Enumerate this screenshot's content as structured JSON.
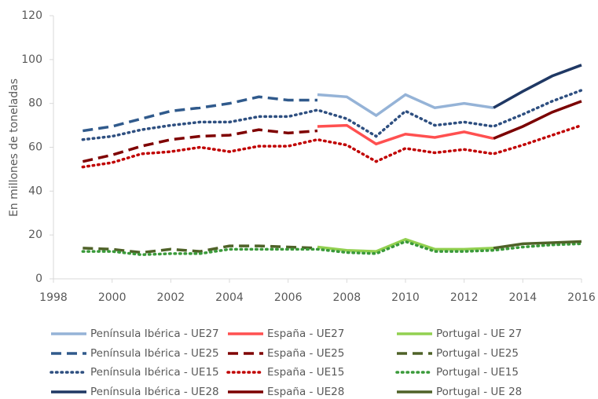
{
  "chart_data": {
    "type": "line",
    "y_label": "En millones de toneladas",
    "xlim": [
      1998,
      2016
    ],
    "xticks": [
      1998,
      2000,
      2002,
      2004,
      2006,
      2008,
      2010,
      2012,
      2014,
      2016
    ],
    "ylim": [
      0,
      120
    ],
    "yticks": [
      0,
      20,
      40,
      60,
      80,
      100,
      120
    ],
    "grid": false,
    "series": [
      {
        "name": "Península Ibérica - UE27",
        "color": "#95b3d7",
        "style": "solid",
        "x": [
          2007,
          2008,
          2009,
          2010,
          2011,
          2012,
          2013
        ],
        "values": [
          84,
          83,
          74.5,
          84,
          78,
          80,
          78
        ]
      },
      {
        "name": "España - UE27",
        "color": "#ff5050",
        "style": "solid",
        "x": [
          2007,
          2008,
          2009,
          2010,
          2011,
          2012,
          2013
        ],
        "values": [
          69.5,
          70,
          61.5,
          66,
          64.5,
          67,
          64
        ]
      },
      {
        "name": "Portugal - UE 27",
        "color": "#92d050",
        "style": "solid",
        "x": [
          2007,
          2008,
          2009,
          2010,
          2011,
          2012,
          2013
        ],
        "values": [
          14.5,
          13,
          12.5,
          18,
          13.5,
          13.5,
          14
        ]
      },
      {
        "name": "Península Ibérica - UE25",
        "color": "#305a8c",
        "style": "dashed",
        "x": [
          1999,
          2000,
          2001,
          2002,
          2003,
          2004,
          2005,
          2006,
          2007
        ],
        "values": [
          67.5,
          69.5,
          73,
          76.5,
          78,
          80,
          83,
          81.5,
          81.5
        ]
      },
      {
        "name": "España - UE25",
        "color": "#7f0000",
        "style": "dashed",
        "x": [
          1999,
          2000,
          2001,
          2002,
          2003,
          2004,
          2005,
          2006,
          2007
        ],
        "values": [
          53.5,
          56.5,
          60.5,
          63.5,
          65,
          65.5,
          68,
          66.5,
          67.5
        ]
      },
      {
        "name": "Portugal - UE25",
        "color": "#4f6228",
        "style": "dashed",
        "x": [
          1999,
          2000,
          2001,
          2002,
          2003,
          2004,
          2005,
          2006,
          2007
        ],
        "values": [
          14,
          13.5,
          12,
          13.5,
          12.5,
          15,
          15,
          14.5,
          14
        ]
      },
      {
        "name": "Península Ibérica - UE15",
        "color": "#2e4f80",
        "style": "dotted",
        "x": [
          1999,
          2000,
          2001,
          2002,
          2003,
          2004,
          2005,
          2006,
          2007,
          2008,
          2009,
          2010,
          2011,
          2012,
          2013,
          2014,
          2015,
          2016
        ],
        "values": [
          63.5,
          65,
          68,
          70,
          71.5,
          71.5,
          74,
          74,
          77,
          73,
          65,
          76.5,
          70,
          71.5,
          69.5,
          75,
          81,
          86
        ]
      },
      {
        "name": "España - UE15",
        "color": "#c00000",
        "style": "dotted",
        "x": [
          1999,
          2000,
          2001,
          2002,
          2003,
          2004,
          2005,
          2006,
          2007,
          2008,
          2009,
          2010,
          2011,
          2012,
          2013,
          2014,
          2015,
          2016
        ],
        "values": [
          51,
          53,
          57,
          58,
          60,
          58,
          60.5,
          60.5,
          63.5,
          61,
          53.5,
          59.5,
          57.5,
          59,
          57,
          61,
          65.5,
          70
        ]
      },
      {
        "name": "Portugal - UE15",
        "color": "#3a9a3a",
        "style": "dotted",
        "x": [
          1999,
          2000,
          2001,
          2002,
          2003,
          2004,
          2005,
          2006,
          2007,
          2008,
          2009,
          2010,
          2011,
          2012,
          2013,
          2014,
          2015,
          2016
        ],
        "values": [
          12.5,
          12.5,
          11,
          11.5,
          11.5,
          13.5,
          13.5,
          13.5,
          13.5,
          12,
          11.5,
          17,
          12.5,
          12.5,
          13,
          14.5,
          15.5,
          16
        ]
      },
      {
        "name": "Península Ibérica - UE28",
        "color": "#1f3864",
        "style": "solid",
        "x": [
          2013,
          2014,
          2015,
          2016
        ],
        "values": [
          78,
          85.5,
          92.5,
          97.5
        ]
      },
      {
        "name": "España - UE28",
        "color": "#7b0000",
        "style": "solid",
        "x": [
          2013,
          2014,
          2015,
          2016
        ],
        "values": [
          64,
          69.5,
          76,
          81
        ]
      },
      {
        "name": "Portugal - UE 28",
        "color": "#4f6228",
        "style": "solid",
        "x": [
          2013,
          2014,
          2015,
          2016
        ],
        "values": [
          14,
          16,
          16.5,
          17
        ]
      }
    ]
  }
}
